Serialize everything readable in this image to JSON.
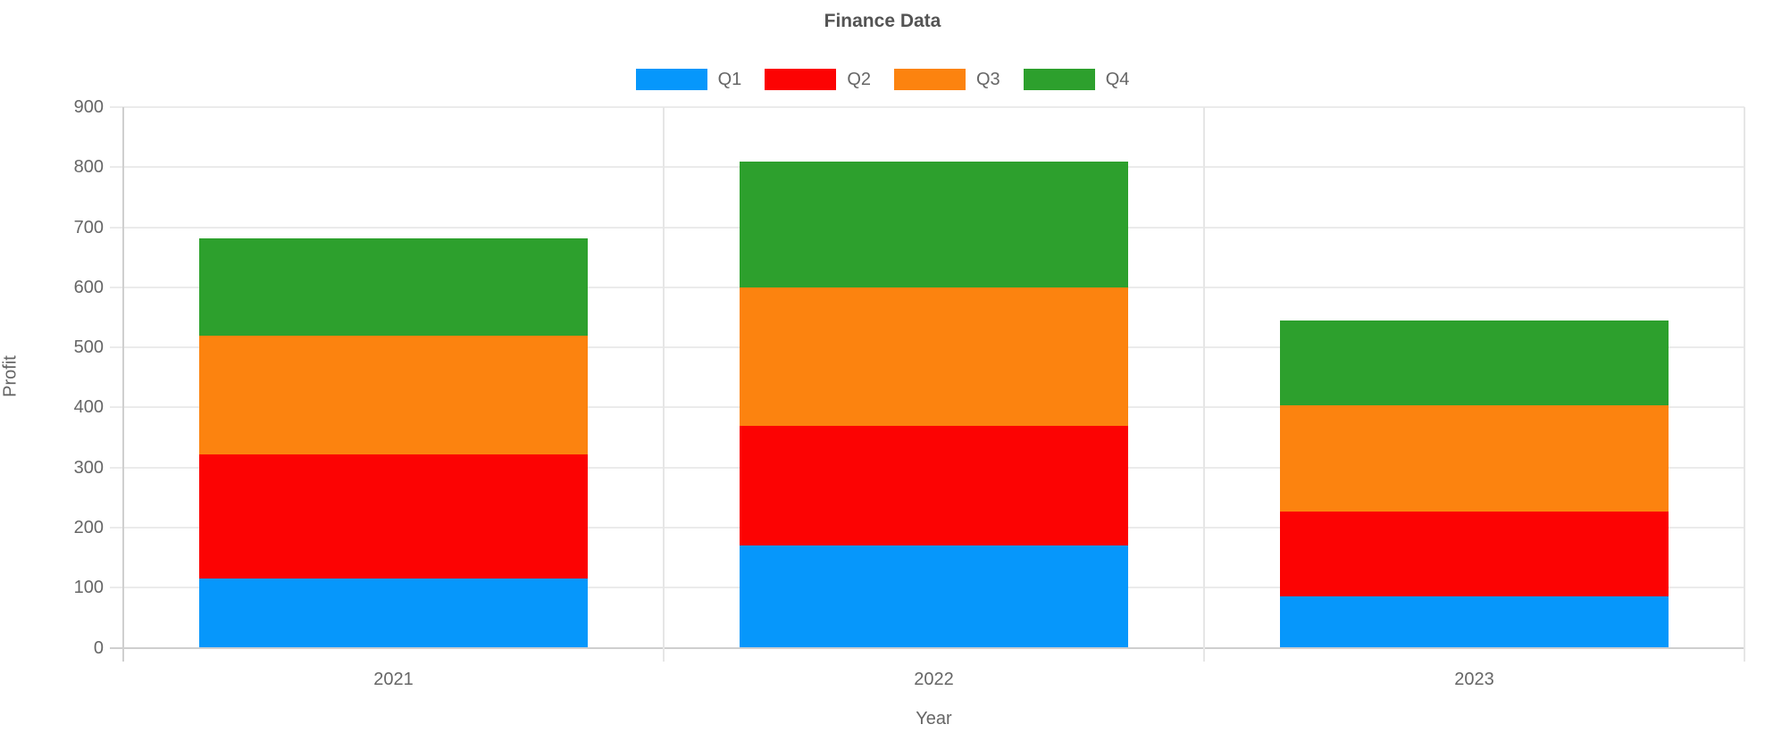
{
  "title": "Finance Data",
  "legend": {
    "position": "top",
    "items": [
      {
        "label": "Q1",
        "color": "#0697FB"
      },
      {
        "label": "Q2",
        "color": "#FC0303"
      },
      {
        "label": "Q3",
        "color": "#FC830F"
      },
      {
        "label": "Q4",
        "color": "#2DA02D"
      }
    ]
  },
  "chart_data": {
    "type": "bar",
    "stacked": true,
    "title": "Finance Data",
    "xlabel": "Year",
    "ylabel": "Profit",
    "categories": [
      "2021",
      "2022",
      "2023"
    ],
    "series": [
      {
        "name": "Q1",
        "color": "#0697FB",
        "values": [
          115,
          170,
          86
        ]
      },
      {
        "name": "Q2",
        "color": "#FC0303",
        "values": [
          207,
          199,
          140
        ]
      },
      {
        "name": "Q3",
        "color": "#FC830F",
        "values": [
          198,
          231,
          178
        ]
      },
      {
        "name": "Q4",
        "color": "#2DA02D",
        "values": [
          162,
          210,
          141
        ]
      }
    ],
    "stack_tops": {
      "2021": [
        115,
        322,
        520,
        682
      ],
      "2022": [
        170,
        369,
        600,
        810
      ],
      "2023": [
        86,
        226,
        404,
        545
      ]
    },
    "ylim": [
      0,
      900
    ],
    "ytick_step": 100,
    "yticks": [
      "0",
      "100",
      "200",
      "300",
      "400",
      "500",
      "600",
      "700",
      "800",
      "900"
    ],
    "grid": true,
    "legend_position": "top"
  },
  "colors": {
    "background": "#FFFFFF",
    "grid": "#EBEBEB",
    "axis": "#CFCFCF",
    "text": "#666666",
    "title_text": "#545454"
  }
}
